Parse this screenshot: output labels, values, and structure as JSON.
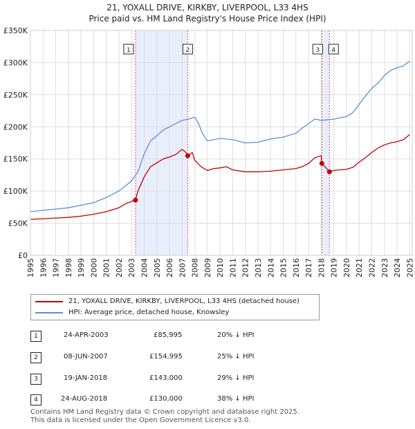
{
  "title_line1": "21, YOXALL DRIVE, KIRKBY, LIVERPOOL, L33 4HS",
  "title_line2": "Price paid vs. HM Land Registry's House Price Index (HPI)",
  "colors": {
    "price_paid": "#c00000",
    "hpi": "#5b8fd4",
    "shade": "#e8eefc",
    "marker_line": "#e05050"
  },
  "chart_data": {
    "type": "line",
    "xlim": [
      1995,
      2025.2
    ],
    "ylim": [
      0,
      350000
    ],
    "y_ticks": [
      0,
      50000,
      100000,
      150000,
      200000,
      250000,
      300000,
      350000
    ],
    "y_tick_labels": [
      "£0",
      "£50K",
      "£100K",
      "£150K",
      "£200K",
      "£250K",
      "£300K",
      "£350K"
    ],
    "x_ticks": [
      1995,
      1996,
      1997,
      1998,
      1999,
      2000,
      2001,
      2002,
      2003,
      2004,
      2005,
      2006,
      2007,
      2008,
      2009,
      2010,
      2011,
      2012,
      2013,
      2014,
      2015,
      2016,
      2017,
      2018,
      2019,
      2020,
      2021,
      2022,
      2023,
      2024,
      2025
    ],
    "shaded_ranges": [
      [
        2003.3,
        2007.44
      ],
      [
        2018.05,
        2018.65
      ]
    ],
    "series": [
      {
        "name": "21, YOXALL DRIVE, KIRKBY, LIVERPOOL, L33 4HS (detached house)",
        "x": [
          1995,
          1996,
          1997,
          1998,
          1999,
          2000,
          2001,
          2002,
          2002.5,
          2003,
          2003.31,
          2003.5,
          2004,
          2004.5,
          2005,
          2005.5,
          2006,
          2006.5,
          2007,
          2007.3,
          2007.44,
          2007.8,
          2008,
          2008.5,
          2009,
          2009.5,
          2010,
          2010.5,
          2011,
          2012,
          2013,
          2014,
          2015,
          2016,
          2016.5,
          2017,
          2017.5,
          2018,
          2018.05,
          2018.3,
          2018.65,
          2019,
          2020,
          2020.5,
          2021,
          2021.5,
          2022,
          2022.5,
          2023,
          2023.5,
          2024,
          2024.5,
          2025
        ],
        "values": [
          56000,
          57000,
          58000,
          59000,
          61000,
          64000,
          68000,
          74000,
          80000,
          84000,
          85995,
          100000,
          122000,
          138000,
          144000,
          150000,
          153000,
          157000,
          165000,
          160000,
          154995,
          160000,
          148000,
          138000,
          132000,
          135000,
          136000,
          138000,
          133000,
          130000,
          130000,
          131000,
          133000,
          135000,
          138000,
          143000,
          152000,
          155000,
          143000,
          138000,
          130000,
          132000,
          134000,
          137000,
          145000,
          152000,
          160000,
          167000,
          172000,
          175000,
          177000,
          180000,
          188000
        ]
      },
      {
        "name": "HPI: Average price, detached house, Knowsley",
        "x": [
          1995,
          1996,
          1997,
          1998,
          1999,
          2000,
          2001,
          2002,
          2002.5,
          2003,
          2003.5,
          2004,
          2004.5,
          2005,
          2005.5,
          2006,
          2006.5,
          2007,
          2007.5,
          2008,
          2008.3,
          2008.6,
          2009,
          2009.5,
          2010,
          2011,
          2012,
          2013,
          2014,
          2015,
          2016,
          2016.5,
          2017,
          2017.5,
          2018,
          2018.5,
          2019,
          2020,
          2020.5,
          2021,
          2021.5,
          2022,
          2022.5,
          2023,
          2023.5,
          2024,
          2024.5,
          2025
        ],
        "values": [
          68000,
          70000,
          72000,
          74000,
          78000,
          82000,
          90000,
          100000,
          108000,
          116000,
          130000,
          158000,
          178000,
          186000,
          195000,
          200000,
          205000,
          210000,
          212000,
          215000,
          205000,
          190000,
          178000,
          180000,
          182000,
          180000,
          175000,
          176000,
          181000,
          184000,
          190000,
          198000,
          205000,
          212000,
          210000,
          211000,
          212000,
          216000,
          222000,
          235000,
          248000,
          260000,
          268000,
          280000,
          288000,
          292000,
          295000,
          302000
        ]
      }
    ],
    "sale_points": [
      {
        "label": "1",
        "x": 2003.31,
        "y": 85995
      },
      {
        "label": "2",
        "x": 2007.44,
        "y": 154995
      },
      {
        "label": "3",
        "x": 2018.05,
        "y": 143000
      },
      {
        "label": "4",
        "x": 2018.65,
        "y": 130000
      }
    ]
  },
  "legend": {
    "series1": "21, YOXALL DRIVE, KIRKBY, LIVERPOOL, L33 4HS (detached house)",
    "series2": "HPI: Average price, detached house, Knowsley"
  },
  "transactions": [
    {
      "num": "1",
      "date": "24-APR-2003",
      "price": "£85,995",
      "hpi": "20% ↓ HPI"
    },
    {
      "num": "2",
      "date": "08-JUN-2007",
      "price": "£154,995",
      "hpi": "25% ↓ HPI"
    },
    {
      "num": "3",
      "date": "19-JAN-2018",
      "price": "£143,000",
      "hpi": "29% ↓ HPI"
    },
    {
      "num": "4",
      "date": "24-AUG-2018",
      "price": "£130,000",
      "hpi": "38% ↓ HPI"
    }
  ],
  "footer_line1": "Contains HM Land Registry data © Crown copyright and database right 2025.",
  "footer_line2": "This data is licensed under the Open Government Licence v3.0."
}
